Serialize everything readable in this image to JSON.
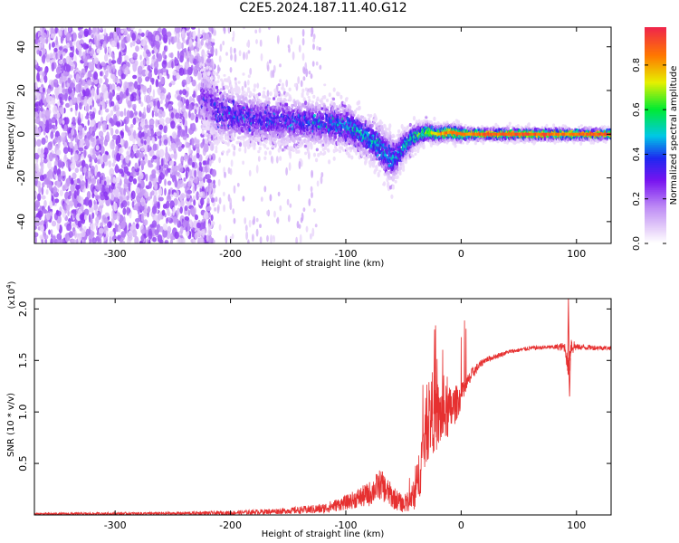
{
  "figure": {
    "title": "C2E5.2024.187.11.40.G12"
  },
  "colorbar": {
    "label": "Normalized spectral amplitude",
    "ticks": [
      0.0,
      0.2,
      0.4,
      0.6,
      0.8
    ],
    "tick_labels": [
      "0.0",
      "0.2",
      "0.4",
      "0.6",
      "0.8"
    ],
    "range": [
      0,
      0.97
    ]
  },
  "chart_data": [
    {
      "type": "heatmap",
      "name": "spectrogram",
      "xlabel": "Height of straight line (km)",
      "ylabel": "Frequency (Hz)",
      "xlim": [
        -370,
        130
      ],
      "ylim": [
        -50,
        49
      ],
      "xticks": [
        -300,
        -200,
        -100,
        0,
        100
      ],
      "xtick_labels": [
        "-300",
        "-200",
        "-100",
        "0",
        "100"
      ],
      "yticks": [
        -40,
        -20,
        0,
        20,
        40
      ],
      "ytick_labels": [
        "-40",
        "-20",
        "0",
        "20",
        "40"
      ],
      "colormap": "rainbow (purple to red)",
      "ridge": {
        "x": [
          -225,
          -210,
          -180,
          -150,
          -120,
          -100,
          -90,
          -80,
          -70,
          -60,
          -55,
          -50,
          -45,
          -40,
          -35,
          -30,
          -20,
          -10,
          0,
          10,
          30,
          60,
          90,
          130
        ],
        "freq": [
          18,
          10,
          7,
          6,
          5,
          4,
          1,
          -2,
          -6,
          -11,
          -10,
          -6,
          -3,
          -1,
          0,
          1,
          0,
          1,
          0,
          0,
          0,
          0,
          0,
          0
        ],
        "width": [
          14,
          14,
          12,
          12,
          11,
          11,
          10,
          10,
          11,
          12,
          10,
          8,
          7,
          6,
          5,
          5,
          4,
          4,
          4,
          3,
          3,
          3,
          3,
          3
        ],
        "amplitude": [
          0.25,
          0.35,
          0.35,
          0.35,
          0.4,
          0.45,
          0.5,
          0.5,
          0.5,
          0.45,
          0.45,
          0.5,
          0.55,
          0.6,
          0.65,
          0.7,
          0.85,
          0.9,
          0.9,
          0.92,
          0.95,
          0.95,
          0.9,
          0.95
        ]
      },
      "noise_region": {
        "x_start": -370,
        "x_end": -220,
        "amplitude": 0.15
      }
    },
    {
      "type": "line",
      "name": "snr",
      "xlabel": "Height of straight line (km)",
      "ylabel": "SNR (10 * v/v)",
      "scale_label": "(x10",
      "scale_exponent": "4",
      "xlim": [
        -370,
        130
      ],
      "ylim": [
        0,
        2.1
      ],
      "xticks": [
        -300,
        -200,
        -100,
        0,
        100
      ],
      "xtick_labels": [
        "-300",
        "-200",
        "-100",
        "0",
        "100"
      ],
      "yticks": [
        0.5,
        1.0,
        1.5,
        2.0
      ],
      "ytick_labels": [
        "0.5",
        "1.0",
        "1.5",
        "2.0"
      ],
      "color": "#e63030",
      "envelope": {
        "x": [
          -370,
          -250,
          -200,
          -150,
          -120,
          -100,
          -80,
          -70,
          -60,
          -50,
          -40,
          -35,
          -30,
          -25,
          -20,
          -10,
          0,
          10,
          20,
          40,
          60,
          80,
          90,
          93,
          95,
          100,
          130
        ],
        "y": [
          0.01,
          0.015,
          0.02,
          0.04,
          0.06,
          0.12,
          0.2,
          0.3,
          0.18,
          0.1,
          0.2,
          0.5,
          0.85,
          1.0,
          0.95,
          1.0,
          1.15,
          1.38,
          1.5,
          1.58,
          1.62,
          1.63,
          1.63,
          1.4,
          1.65,
          1.63,
          1.62
        ],
        "noise": [
          0.01,
          0.015,
          0.02,
          0.03,
          0.05,
          0.07,
          0.12,
          0.15,
          0.12,
          0.08,
          0.15,
          0.3,
          0.35,
          0.4,
          0.35,
          0.25,
          0.12,
          0.06,
          0.03,
          0.02,
          0.02,
          0.02,
          0.05,
          0.1,
          0.12,
          0.03,
          0.02
        ]
      },
      "features": [
        {
          "x": -23,
          "y": 1.8
        },
        {
          "x": 93,
          "y": 2.1
        },
        {
          "x": 94,
          "y": 1.15
        }
      ]
    }
  ]
}
